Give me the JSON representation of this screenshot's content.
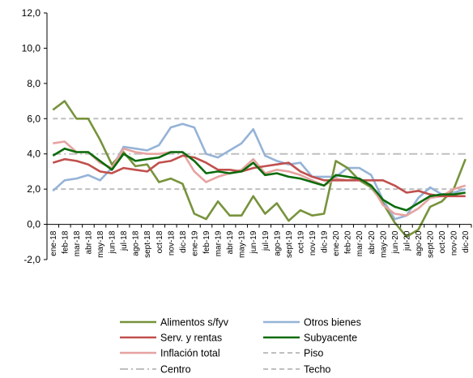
{
  "chart_data": {
    "type": "line",
    "title": "",
    "xlabel": "",
    "ylabel": "",
    "ylim": [
      -2,
      12
    ],
    "y_ticks": [
      "-2,0",
      "0,0",
      "2,0",
      "4,0",
      "6,0",
      "8,0",
      "10,0",
      "12,0"
    ],
    "grid": false,
    "legend_position": "bottom",
    "x": [
      "ene-18",
      "feb-18",
      "mar-18",
      "abr-18",
      "may-18",
      "jun-18",
      "jul-18",
      "ago-18",
      "sept-18",
      "oct-18",
      "nov-18",
      "dic-18",
      "ene-19",
      "feb-19",
      "mar-19",
      "abr-19",
      "may-19",
      "jun-19",
      "jul-19",
      "ago-19",
      "sept-19",
      "oct-19",
      "nov-19",
      "dic-19",
      "ene-20",
      "feb-20",
      "mar-20",
      "abr-20",
      "may-20",
      "jun-20",
      "jul-20",
      "ago-20",
      "sept-20",
      "oct-20",
      "nov-20",
      "dic-20"
    ],
    "x_labels_shown": [
      "ene-18",
      "feb-18",
      "mar-18",
      "abr-18",
      "may-18",
      "jun-18",
      "jul-18",
      "ago-18",
      "sept-18",
      "oct-18",
      "nov-18",
      "dic-18",
      "ene-19",
      "feb-19",
      "mar-19",
      "abr-19",
      "may-19",
      "jun-19",
      "jul-19",
      "ago-19",
      "sept-19",
      "oct-19",
      "nov-19",
      "dic-19",
      "ene-20",
      "feb-20",
      "mar-20",
      "abr-20",
      "may-20",
      "jun-20",
      "jul-20",
      "ago-20",
      "sept-20",
      "oct-20",
      "nov-20",
      "dic-20"
    ],
    "series": [
      {
        "name": "Alimentos s/fyv",
        "color": "#77933c",
        "width": 2.6,
        "dash": "",
        "values": [
          6.5,
          7.0,
          6.0,
          6.0,
          4.8,
          3.4,
          4.1,
          3.3,
          3.4,
          2.4,
          2.6,
          2.3,
          0.6,
          0.3,
          1.3,
          0.5,
          0.5,
          1.6,
          0.6,
          1.2,
          0.2,
          0.8,
          0.5,
          0.6,
          3.6,
          3.2,
          2.5,
          2.1,
          1.2,
          0.1,
          -0.7,
          -0.3,
          1.0,
          1.3,
          2.0,
          3.7
        ]
      },
      {
        "name": "Otros bienes",
        "color": "#95b3d7",
        "width": 2.6,
        "dash": "",
        "values": [
          1.9,
          2.5,
          2.6,
          2.8,
          2.5,
          3.2,
          4.4,
          4.3,
          4.2,
          4.5,
          5.5,
          5.7,
          5.5,
          4.0,
          3.8,
          4.2,
          4.6,
          5.4,
          3.9,
          3.6,
          3.4,
          3.5,
          2.7,
          2.7,
          2.7,
          3.2,
          3.2,
          2.8,
          1.4,
          0.3,
          0.5,
          1.5,
          2.1,
          1.7,
          1.8,
          2.0
        ]
      },
      {
        "name": "Serv. y rentas",
        "color": "#c0504d",
        "width": 2.6,
        "dash": "",
        "values": [
          3.5,
          3.7,
          3.6,
          3.4,
          3.0,
          2.9,
          3.2,
          3.1,
          3.0,
          3.5,
          3.6,
          3.9,
          3.8,
          3.5,
          3.1,
          3.1,
          3.0,
          3.2,
          3.3,
          3.4,
          3.5,
          3.0,
          2.7,
          2.5,
          2.5,
          2.5,
          2.5,
          2.5,
          2.5,
          2.2,
          1.8,
          1.9,
          1.7,
          1.6,
          1.6,
          1.6
        ]
      },
      {
        "name": "Subyacente",
        "color": "#0b6b0b",
        "width": 2.6,
        "dash": "",
        "values": [
          3.9,
          4.3,
          4.1,
          4.1,
          3.6,
          3.1,
          4.0,
          3.6,
          3.7,
          3.8,
          4.1,
          4.1,
          3.6,
          2.9,
          3.0,
          2.9,
          3.0,
          3.5,
          2.8,
          2.9,
          2.7,
          2.6,
          2.4,
          2.2,
          2.8,
          2.7,
          2.6,
          2.2,
          1.4,
          1.0,
          0.8,
          1.2,
          1.6,
          1.7,
          1.7,
          1.8
        ]
      },
      {
        "name": "Inflación total",
        "color": "#e6a3a1",
        "width": 2.6,
        "dash": "",
        "values": [
          4.6,
          4.7,
          4.1,
          4.1,
          3.5,
          3.2,
          4.3,
          4.1,
          4.0,
          4.0,
          4.1,
          4.1,
          3.0,
          2.4,
          2.7,
          2.9,
          3.1,
          3.7,
          2.9,
          3.1,
          3.0,
          2.8,
          2.5,
          2.2,
          2.6,
          2.5,
          2.6,
          2.2,
          1.1,
          0.6,
          0.5,
          0.9,
          1.5,
          1.6,
          2.0,
          2.2
        ]
      },
      {
        "name": "Piso",
        "color": "#bfbfbf",
        "width": 2.0,
        "dash": "6,4",
        "values": [
          2,
          2,
          2,
          2,
          2,
          2,
          2,
          2,
          2,
          2,
          2,
          2,
          2,
          2,
          2,
          2,
          2,
          2,
          2,
          2,
          2,
          2,
          2,
          2,
          2,
          2,
          2,
          2,
          2,
          2,
          2,
          2,
          2,
          2,
          2,
          2
        ]
      },
      {
        "name": "Centro",
        "color": "#bfbfbf",
        "width": 2.0,
        "dash": "10,4,2,4",
        "values": [
          4,
          4,
          4,
          4,
          4,
          4,
          4,
          4,
          4,
          4,
          4,
          4,
          4,
          4,
          4,
          4,
          4,
          4,
          4,
          4,
          4,
          4,
          4,
          4,
          4,
          4,
          4,
          4,
          4,
          4,
          4,
          4,
          4,
          4,
          4,
          4
        ]
      },
      {
        "name": "Techo",
        "color": "#bfbfbf",
        "width": 2.0,
        "dash": "6,4",
        "values": [
          6,
          6,
          6,
          6,
          6,
          6,
          6,
          6,
          6,
          6,
          6,
          6,
          6,
          6,
          6,
          6,
          6,
          6,
          6,
          6,
          6,
          6,
          6,
          6,
          6,
          6,
          6,
          6,
          6,
          6,
          6,
          6,
          6,
          6,
          6,
          6
        ]
      }
    ],
    "legend_order": [
      "Alimentos s/fyv",
      "Otros bienes",
      "Serv. y rentas",
      "Subyacente",
      "Inflación total",
      "Piso",
      "Centro",
      "Techo"
    ]
  }
}
